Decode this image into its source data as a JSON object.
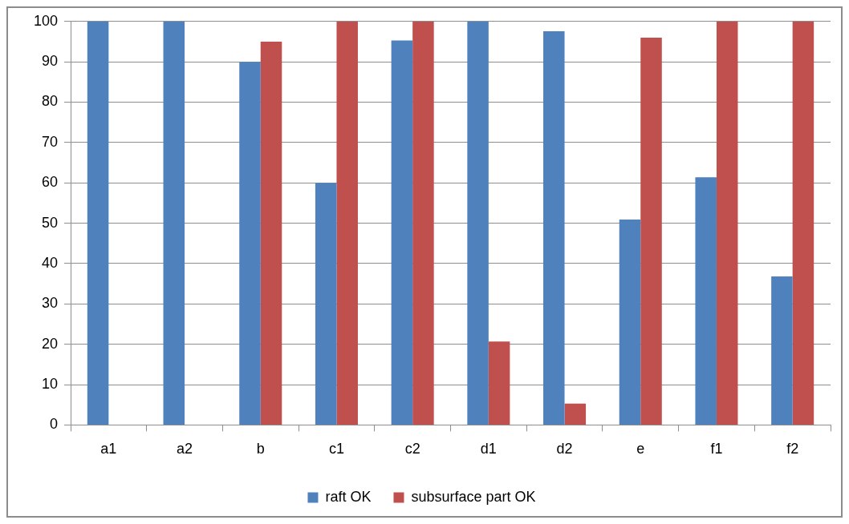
{
  "chart_data": {
    "type": "bar",
    "categories": [
      "a1",
      "a2",
      "b",
      "c1",
      "c2",
      "d1",
      "d2",
      "e",
      "f1",
      "f2"
    ],
    "series": [
      {
        "name": "raft OK",
        "color": "#4f81bd",
        "values": [
          100,
          100,
          90,
          60,
          95.3,
          100,
          97.6,
          50.9,
          61.4,
          36.8
        ]
      },
      {
        "name": "subsurface part OK",
        "color": "#c0504d",
        "values": [
          0,
          0,
          95,
          100,
          100,
          20.7,
          5.3,
          96,
          100,
          100
        ]
      }
    ],
    "ylim": [
      0,
      100
    ],
    "yticks": [
      0,
      10,
      20,
      30,
      40,
      50,
      60,
      70,
      80,
      90,
      100
    ],
    "grid": "y",
    "legend": "bottom"
  }
}
